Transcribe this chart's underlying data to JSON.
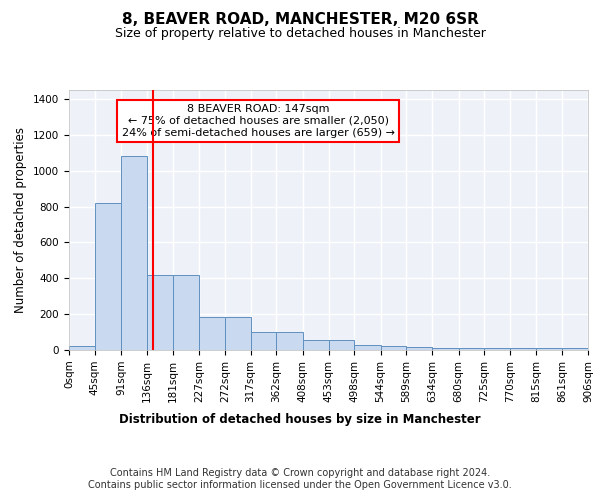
{
  "title": "8, BEAVER ROAD, MANCHESTER, M20 6SR",
  "subtitle": "Size of property relative to detached houses in Manchester",
  "xlabel": "Distribution of detached houses by size in Manchester",
  "ylabel": "Number of detached properties",
  "footnote1": "Contains HM Land Registry data © Crown copyright and database right 2024.",
  "footnote2": "Contains public sector information licensed under the Open Government Licence v3.0.",
  "annotation_line1": "8 BEAVER ROAD: 147sqm",
  "annotation_line2": "← 75% of detached houses are smaller (2,050)",
  "annotation_line3": "24% of semi-detached houses are larger (659) →",
  "bin_edges": [
    0,
    45,
    91,
    136,
    181,
    227,
    272,
    317,
    362,
    408,
    453,
    498,
    544,
    589,
    634,
    680,
    725,
    770,
    815,
    861,
    906
  ],
  "bar_heights": [
    25,
    820,
    1080,
    420,
    420,
    185,
    185,
    100,
    100,
    55,
    55,
    30,
    25,
    15,
    10,
    10,
    10,
    10,
    10,
    10
  ],
  "bar_color": "#c9d9f0",
  "bar_edge_color": "#6090c0",
  "red_line_x": 147,
  "ylim": [
    0,
    1450
  ],
  "xlim": [
    0,
    906
  ],
  "background_color": "#eef2f8",
  "grid_color": "#ffffff",
  "title_fontsize": 11,
  "subtitle_fontsize": 9,
  "axis_label_fontsize": 8.5,
  "tick_fontsize": 7.5,
  "footnote_fontsize": 7,
  "annotation_fontsize": 8
}
